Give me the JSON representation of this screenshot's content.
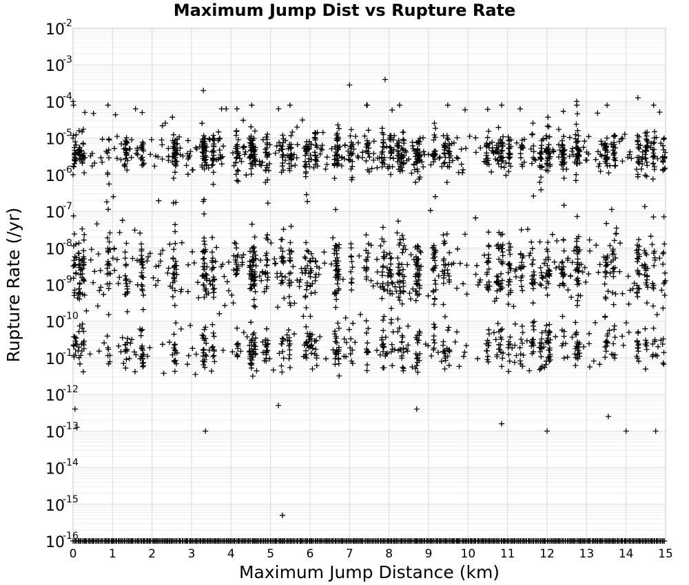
{
  "chart_data": {
    "type": "scatter",
    "title": "Maximum Jump Dist vs Rupture Rate",
    "xlabel": "Maximum Jump Distance (km)",
    "ylabel": "Rupture Rate (/yr)",
    "xlim": [
      0,
      15
    ],
    "ylim_exponents": [
      -16,
      -2
    ],
    "yscale": "log",
    "grid": true,
    "marker": "plus",
    "x_ticks": [
      "0",
      "1",
      "2",
      "3",
      "4",
      "5",
      "6",
      "7",
      "8",
      "9",
      "10",
      "11",
      "12",
      "13",
      "14",
      "15"
    ],
    "y_ticks": [
      {
        "base": "10",
        "exp": "-2"
      },
      {
        "base": "10",
        "exp": "-3"
      },
      {
        "base": "10",
        "exp": "-4"
      },
      {
        "base": "10",
        "exp": "-5"
      },
      {
        "base": "10",
        "exp": "-6"
      },
      {
        "base": "10",
        "exp": "-7"
      },
      {
        "base": "10",
        "exp": "-8"
      },
      {
        "base": "10",
        "exp": "-9"
      },
      {
        "base": "10",
        "exp": "-10"
      },
      {
        "base": "10",
        "exp": "-11"
      },
      {
        "base": "10",
        "exp": "-12"
      },
      {
        "base": "10",
        "exp": "-13"
      },
      {
        "base": "10",
        "exp": "-14"
      },
      {
        "base": "10",
        "exp": "-15"
      },
      {
        "base": "10",
        "exp": "-16"
      }
    ],
    "column_x_km": [
      0.0,
      0.05,
      0.15,
      0.25,
      0.9,
      1.35,
      1.75,
      2.55,
      2.6,
      3.3,
      3.35,
      3.55,
      4.15,
      4.5,
      4.55,
      4.6,
      4.9,
      5.3,
      5.5,
      5.9,
      6.0,
      6.15,
      6.65,
      6.7,
      7.05,
      7.45,
      7.85,
      8.05,
      8.25,
      8.35,
      8.7,
      8.75,
      9.15,
      9.4,
      9.5,
      10.5,
      10.75,
      10.85,
      11.05,
      11.35,
      11.65,
      11.85,
      12.0,
      12.05,
      12.4,
      12.75,
      12.8,
      13.5,
      13.7,
      14.3,
      14.5,
      14.7,
      14.95
    ],
    "points_sample": [
      [
        0.0,
        -4.0
      ],
      [
        0.0,
        -5.0
      ],
      [
        0.0,
        -6.0
      ],
      [
        0.3,
        -4.3
      ],
      [
        0.05,
        -12.4
      ],
      [
        0.1,
        -12.9
      ],
      [
        3.3,
        -3.7
      ],
      [
        4.15,
        -4.2
      ],
      [
        4.5,
        -9.0
      ],
      [
        4.55,
        -11.5
      ],
      [
        5.2,
        -12.3
      ],
      [
        5.3,
        -15.3
      ],
      [
        3.35,
        -13.0
      ],
      [
        7.0,
        -3.55
      ],
      [
        7.9,
        -3.4
      ],
      [
        8.7,
        -12.4
      ],
      [
        10.85,
        -12.8
      ],
      [
        12.0,
        -13.0
      ],
      [
        13.55,
        -12.6
      ],
      [
        14.0,
        -13.0
      ],
      [
        14.75,
        -13.0
      ],
      [
        12.75,
        -4.0
      ],
      [
        14.3,
        -3.9
      ]
    ],
    "zero_rate_points": "dense row of markers at the 10^-16 floor across 0–15 km"
  }
}
